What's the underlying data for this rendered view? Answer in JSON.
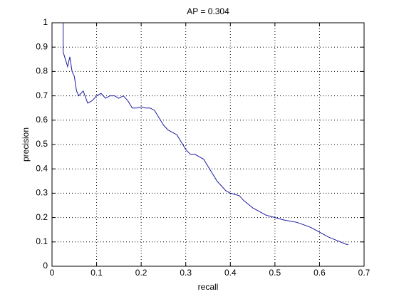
{
  "chart_data": {
    "type": "line",
    "title": "AP = 0.304",
    "x_label": "recall",
    "y_label": "precision",
    "x": [
      0.025,
      0.025,
      0.03,
      0.035,
      0.04,
      0.045,
      0.05,
      0.055,
      0.06,
      0.07,
      0.08,
      0.09,
      0.1,
      0.11,
      0.12,
      0.13,
      0.14,
      0.15,
      0.16,
      0.17,
      0.18,
      0.19,
      0.2,
      0.21,
      0.22,
      0.23,
      0.24,
      0.25,
      0.26,
      0.27,
      0.28,
      0.29,
      0.3,
      0.31,
      0.32,
      0.33,
      0.34,
      0.35,
      0.36,
      0.37,
      0.38,
      0.39,
      0.4,
      0.41,
      0.42,
      0.43,
      0.44,
      0.45,
      0.46,
      0.47,
      0.48,
      0.5,
      0.52,
      0.55,
      0.58,
      0.6,
      0.62,
      0.64,
      0.66,
      0.665
    ],
    "series": [
      {
        "name": "precision",
        "color": "#1a1aa0",
        "values": [
          1.0,
          0.88,
          0.85,
          0.82,
          0.86,
          0.8,
          0.78,
          0.72,
          0.7,
          0.72,
          0.67,
          0.68,
          0.7,
          0.71,
          0.69,
          0.7,
          0.7,
          0.69,
          0.7,
          0.68,
          0.65,
          0.65,
          0.655,
          0.65,
          0.65,
          0.64,
          0.61,
          0.58,
          0.56,
          0.55,
          0.54,
          0.51,
          0.48,
          0.46,
          0.46,
          0.45,
          0.44,
          0.41,
          0.38,
          0.35,
          0.33,
          0.31,
          0.3,
          0.295,
          0.29,
          0.27,
          0.255,
          0.24,
          0.23,
          0.22,
          0.21,
          0.2,
          0.19,
          0.18,
          0.16,
          0.14,
          0.12,
          0.105,
          0.09,
          0.09
        ]
      }
    ],
    "xlim": [
      0,
      0.7
    ],
    "xticks": [
      0,
      0.1,
      0.2,
      0.3,
      0.4,
      0.5,
      0.6,
      0.7
    ],
    "ylim": [
      0,
      1
    ],
    "yticks": [
      0,
      0.1,
      0.2,
      0.3,
      0.4,
      0.5,
      0.6,
      0.7,
      0.8,
      0.9,
      1
    ],
    "grid": true
  }
}
